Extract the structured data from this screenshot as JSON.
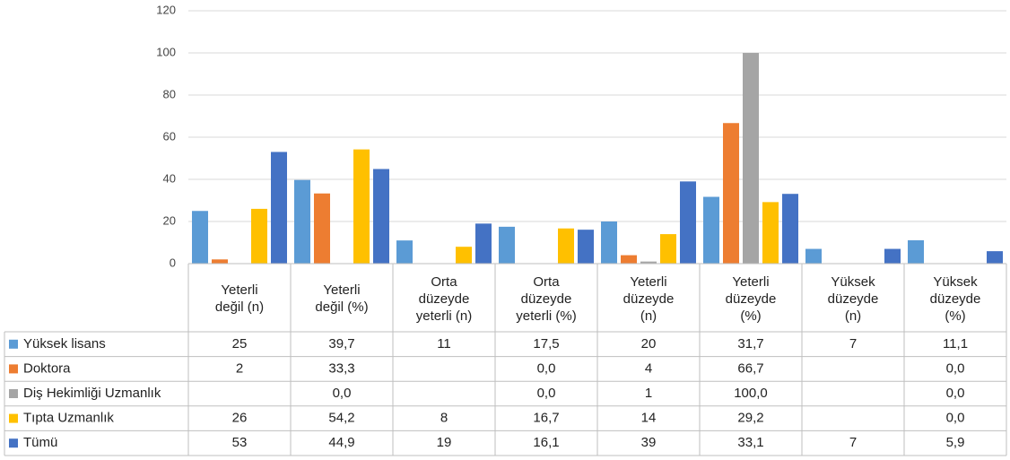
{
  "chart_data": {
    "type": "bar",
    "categories": [
      "Yeterli\ndeğil (n)",
      "Yeterli\ndeğil (%)",
      "Orta\ndüzeyde\nyeterli (n)",
      "Orta\ndüzeyde\nyeterli (%)",
      "Yeterli\ndüzeyde\n(n)",
      "Yeterli\ndüzeyde\n(%)",
      "Yüksek\ndüzeyde\n(n)",
      "Yüksek\ndüzeyde\n(%)"
    ],
    "series": [
      {
        "name": "Yüksek lisans",
        "color": "#5b9bd5",
        "values": [
          25,
          39.7,
          11,
          17.5,
          20,
          31.7,
          7,
          11.1
        ],
        "value_labels": [
          "25",
          "39,7",
          "11",
          "17,5",
          "20",
          "31,7",
          "7",
          "11,1"
        ]
      },
      {
        "name": "Doktora",
        "color": "#ed7d31",
        "values": [
          2,
          33.3,
          null,
          0,
          4,
          66.7,
          null,
          0
        ],
        "value_labels": [
          "2",
          "33,3",
          null,
          "0,0",
          "4",
          "66,7",
          null,
          "0,0"
        ]
      },
      {
        "name": "Diş Hekimliği Uzmanlık",
        "color": "#a5a5a5",
        "values": [
          null,
          0,
          null,
          0,
          1,
          100,
          null,
          0
        ],
        "value_labels": [
          null,
          "0,0",
          null,
          "0,0",
          "1",
          "100,0",
          null,
          "0,0"
        ]
      },
      {
        "name": "Tıpta Uzmanlık",
        "color": "#ffc000",
        "values": [
          26,
          54.2,
          8,
          16.7,
          14,
          29.2,
          null,
          0
        ],
        "value_labels": [
          "26",
          "54,2",
          "8",
          "16,7",
          "14",
          "29,2",
          null,
          "0,0"
        ]
      },
      {
        "name": "Tümü",
        "color": "#4472c4",
        "values": [
          53,
          44.9,
          19,
          16.1,
          39,
          33.1,
          7,
          5.9
        ],
        "value_labels": [
          "53",
          "44,9",
          "19",
          "16,1",
          "39",
          "33,1",
          "7",
          "5,9"
        ]
      }
    ],
    "ylim": [
      0,
      120
    ],
    "yticks": [
      0,
      20,
      40,
      60,
      80,
      100,
      120
    ],
    "grid": true
  }
}
